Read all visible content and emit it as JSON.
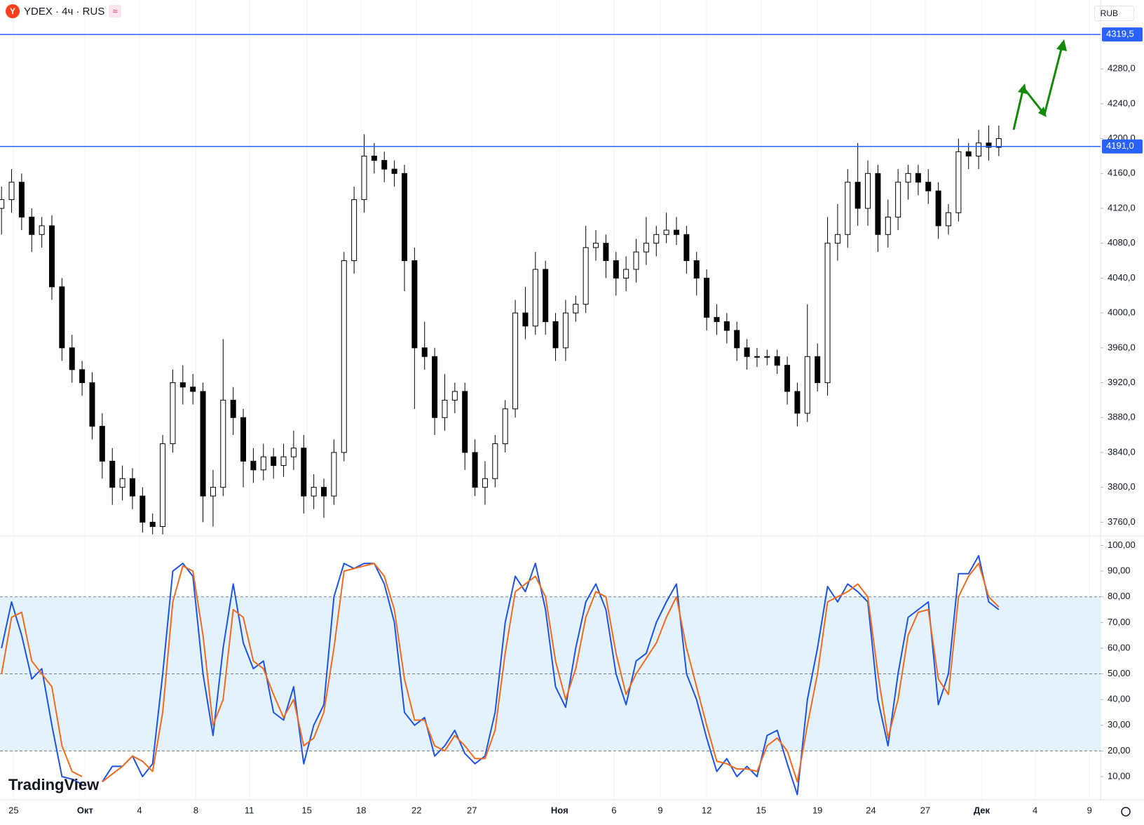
{
  "header": {
    "symbol": "YDEX · 4ч · RUS",
    "currency": "RUB"
  },
  "watermark": "TradingView",
  "chart_data": [
    {
      "type": "candlestick",
      "up_color": "#ffffff",
      "down_color": "#000000",
      "wick_color": "#000000",
      "xlim": [
        -0.15,
        109.1
      ],
      "ylim": [
        3745,
        4359
      ],
      "yticks": [
        {
          "value": 3760,
          "label": "3760,0"
        },
        {
          "value": 3800,
          "label": "3800,0"
        },
        {
          "value": 3840,
          "label": "3840,0"
        },
        {
          "value": 3880,
          "label": "3880,0"
        },
        {
          "value": 3920,
          "label": "3920,0"
        },
        {
          "value": 3960,
          "label": "3960,0"
        },
        {
          "value": 4000,
          "label": "4000,0"
        },
        {
          "value": 4040,
          "label": "4040,0"
        },
        {
          "value": 4080,
          "label": "4080,0"
        },
        {
          "value": 4120,
          "label": "4120,0"
        },
        {
          "value": 4160,
          "label": "4160,0"
        },
        {
          "value": 4200,
          "label": "4200,0"
        },
        {
          "value": 4240,
          "label": "4240,0"
        },
        {
          "value": 4280,
          "label": "4280,0"
        }
      ],
      "hlines": [
        {
          "value": 4319.5,
          "label": "4319,5",
          "color": "#2962ff"
        },
        {
          "value": 4191.0,
          "label": "4191,0",
          "color": "#2962ff"
        }
      ],
      "open": [
        4120,
        4130,
        4150,
        4110,
        4090,
        4100,
        4030,
        3960,
        3935,
        3920,
        3870,
        3830,
        3800,
        3810,
        3790,
        3760,
        3755,
        3850,
        3920,
        3915,
        3910,
        3790,
        3800,
        3900,
        3880,
        3830,
        3820,
        3835,
        3825,
        3835,
        3845,
        3790,
        3800,
        3790,
        3840,
        4060,
        4130,
        4180,
        4175,
        4165,
        4160,
        4060,
        3960,
        3950,
        3880,
        3900,
        3910,
        3840,
        3800,
        3810,
        3850,
        3890,
        4000,
        3985,
        4050,
        3990,
        3960,
        4000,
        4010,
        4075,
        4080,
        4060,
        4040,
        4050,
        4070,
        4080,
        4090,
        4095,
        4090,
        4060,
        4040,
        3995,
        3990,
        3980,
        3960,
        3950,
        3950,
        3950,
        3940,
        3910,
        3885,
        3950,
        3920,
        4080,
        4090,
        4150,
        4120,
        4160,
        4090,
        4110,
        4150,
        4160,
        4150,
        4140,
        4100,
        4115,
        4185,
        4180,
        4195,
        4190
      ],
      "high": [
        4145,
        4165,
        4160,
        4120,
        4110,
        4112,
        4040,
        3975,
        3945,
        3932,
        3885,
        3845,
        3825,
        3822,
        3800,
        3770,
        3860,
        3935,
        3940,
        3930,
        3920,
        3820,
        3970,
        3915,
        3890,
        3845,
        3850,
        3845,
        3850,
        3865,
        3860,
        3815,
        3810,
        3855,
        4070,
        4145,
        4205,
        4195,
        4185,
        4175,
        4170,
        4075,
        3990,
        3960,
        3930,
        3920,
        3920,
        3855,
        3830,
        3860,
        3900,
        4015,
        4030,
        4070,
        4060,
        4000,
        4015,
        4020,
        4100,
        4095,
        4090,
        4070,
        4065,
        4085,
        4110,
        4100,
        4115,
        4110,
        4100,
        4070,
        4050,
        4010,
        4000,
        3990,
        3970,
        3960,
        3958,
        3958,
        3950,
        3920,
        4010,
        3965,
        4110,
        4125,
        4165,
        4195,
        4175,
        4170,
        4130,
        4165,
        4170,
        4170,
        4165,
        4150,
        4125,
        4200,
        4195,
        4210,
        4215,
        4215
      ],
      "low": [
        4090,
        4115,
        4095,
        4070,
        4075,
        4015,
        3945,
        3920,
        3905,
        3855,
        3810,
        3780,
        3785,
        3775,
        3748,
        3746,
        3746,
        3840,
        3895,
        3895,
        3760,
        3755,
        3790,
        3860,
        3800,
        3805,
        3808,
        3810,
        3812,
        3820,
        3770,
        3775,
        3765,
        3780,
        3830,
        4045,
        4115,
        4160,
        4150,
        4145,
        4025,
        3890,
        3935,
        3860,
        3865,
        3885,
        3820,
        3790,
        3780,
        3800,
        3840,
        3880,
        3970,
        3975,
        3975,
        3945,
        3945,
        3990,
        4000,
        4060,
        4040,
        4020,
        4025,
        4035,
        4055,
        4065,
        4080,
        4078,
        4045,
        4020,
        3980,
        3975,
        3965,
        3945,
        3935,
        3938,
        3940,
        3930,
        3895,
        3870,
        3875,
        3910,
        3905,
        4060,
        4075,
        4100,
        4100,
        4070,
        4075,
        4095,
        4130,
        4135,
        4125,
        4085,
        4090,
        4105,
        4165,
        4165,
        4175,
        4180
      ],
      "close": [
        4130,
        4150,
        4110,
        4090,
        4100,
        4030,
        3960,
        3935,
        3920,
        3870,
        3830,
        3800,
        3810,
        3790,
        3760,
        3755,
        3850,
        3920,
        3915,
        3910,
        3790,
        3800,
        3900,
        3880,
        3830,
        3820,
        3835,
        3825,
        3835,
        3845,
        3790,
        3800,
        3790,
        3840,
        4060,
        4130,
        4180,
        4175,
        4165,
        4160,
        4060,
        3960,
        3950,
        3880,
        3900,
        3910,
        3840,
        3800,
        3810,
        3850,
        3890,
        4000,
        3985,
        4050,
        3990,
        3960,
        4000,
        4010,
        4075,
        4080,
        4060,
        4040,
        4050,
        4070,
        4080,
        4090,
        4095,
        4090,
        4060,
        4040,
        3995,
        3990,
        3980,
        3960,
        3950,
        3950,
        3950,
        3940,
        3910,
        3885,
        3950,
        3920,
        4080,
        4090,
        4150,
        4120,
        4160,
        4090,
        4110,
        4150,
        4160,
        4150,
        4140,
        4100,
        4115,
        4185,
        4180,
        4195,
        4190,
        4200
      ]
    },
    {
      "type": "line",
      "xlim": [
        -0.15,
        109.1
      ],
      "ylim": [
        1,
        103.4
      ],
      "band": [
        20,
        80
      ],
      "band_color": "#e3f2fd",
      "levels": [
        20,
        50,
        80
      ],
      "yticks": [
        {
          "value": 10,
          "label": "10,00"
        },
        {
          "value": 20,
          "label": "20,00"
        },
        {
          "value": 30,
          "label": "30,00"
        },
        {
          "value": 40,
          "label": "40,00"
        },
        {
          "value": 50,
          "label": "50,00"
        },
        {
          "value": 60,
          "label": "60,00"
        },
        {
          "value": 70,
          "label": "70,00"
        },
        {
          "value": 80,
          "label": "80,00"
        },
        {
          "value": 90,
          "label": "90,00"
        },
        {
          "value": 100,
          "label": "100,00"
        }
      ],
      "xticks": [
        {
          "value": 1.2,
          "label": "25"
        },
        {
          "value": 8.3,
          "label": "Окт"
        },
        {
          "value": 13.7,
          "label": "4"
        },
        {
          "value": 19.3,
          "label": "8"
        },
        {
          "value": 24.6,
          "label": "11"
        },
        {
          "value": 30.3,
          "label": "15"
        },
        {
          "value": 35.7,
          "label": "18"
        },
        {
          "value": 41.2,
          "label": "22"
        },
        {
          "value": 46.7,
          "label": "27"
        },
        {
          "value": 55.4,
          "label": "Ноя"
        },
        {
          "value": 60.8,
          "label": "6"
        },
        {
          "value": 65.4,
          "label": "9"
        },
        {
          "value": 70,
          "label": "12"
        },
        {
          "value": 75.4,
          "label": "15"
        },
        {
          "value": 81,
          "label": "19"
        },
        {
          "value": 86.3,
          "label": "24"
        },
        {
          "value": 91.7,
          "label": "27"
        },
        {
          "value": 97.3,
          "label": "Дек"
        },
        {
          "value": 102.6,
          "label": "4"
        },
        {
          "value": 108,
          "label": "9"
        }
      ],
      "series": [
        {
          "color": "#1e53e5",
          "values": [
            60,
            78,
            65,
            48,
            52,
            30,
            10,
            9,
            7,
            null,
            8,
            14,
            14,
            18,
            10,
            15,
            50,
            90,
            93,
            88,
            50,
            26,
            60,
            85,
            62,
            52,
            55,
            35,
            32,
            45,
            15,
            30,
            38,
            80,
            93,
            91,
            93,
            93,
            85,
            70,
            35,
            30,
            33,
            18,
            22,
            28,
            19,
            15,
            18,
            35,
            70,
            88,
            82,
            93,
            75,
            45,
            37,
            60,
            78,
            85,
            75,
            50,
            38,
            55,
            58,
            70,
            78,
            85,
            50,
            40,
            25,
            12,
            17,
            10,
            14,
            10,
            26,
            28,
            15,
            3,
            40,
            60,
            84,
            78,
            85,
            82,
            78,
            40,
            22,
            50,
            72,
            75,
            78,
            38,
            50,
            89,
            89,
            96,
            78,
            75
          ]
        },
        {
          "color": "#f26b1d",
          "values": [
            50,
            72,
            74,
            55,
            50,
            45,
            22,
            12,
            10,
            null,
            8,
            11,
            14,
            18,
            16,
            12,
            35,
            78,
            92,
            90,
            65,
            30,
            40,
            75,
            72,
            55,
            52,
            42,
            33,
            40,
            22,
            25,
            35,
            60,
            90,
            91,
            92,
            93,
            88,
            75,
            48,
            32,
            32,
            22,
            20,
            26,
            22,
            17,
            17,
            28,
            58,
            82,
            85,
            88,
            80,
            55,
            40,
            52,
            72,
            82,
            80,
            58,
            42,
            50,
            56,
            62,
            72,
            80,
            60,
            45,
            30,
            16,
            15,
            13,
            13,
            12,
            22,
            25,
            20,
            8,
            30,
            50,
            78,
            80,
            82,
            85,
            80,
            50,
            25,
            40,
            65,
            74,
            75,
            48,
            42,
            80,
            88,
            93,
            80,
            76
          ]
        }
      ]
    }
  ]
}
